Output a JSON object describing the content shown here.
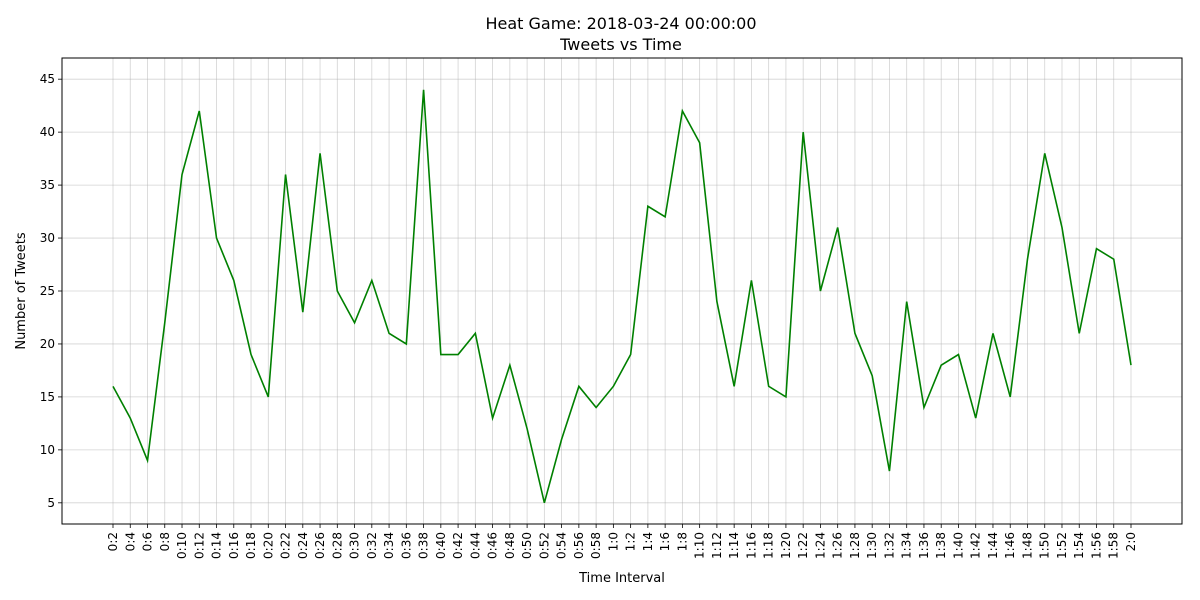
{
  "chart_data": {
    "type": "line",
    "title": "Heat Game: 2018-03-24 00:00:00",
    "subtitle": "Tweets vs Time",
    "xlabel": "Time Interval",
    "ylabel": "Number of Tweets",
    "ylim": [
      3.0,
      47.0
    ],
    "yticks": [
      5,
      10,
      15,
      20,
      25,
      30,
      35,
      40,
      45
    ],
    "grid": true,
    "line_color": "#008000",
    "categories": [
      "0:2",
      "0:4",
      "0:6",
      "0:8",
      "0:10",
      "0:12",
      "0:14",
      "0:16",
      "0:18",
      "0:20",
      "0:22",
      "0:24",
      "0:26",
      "0:28",
      "0:30",
      "0:32",
      "0:34",
      "0:36",
      "0:38",
      "0:40",
      "0:42",
      "0:44",
      "0:46",
      "0:48",
      "0:50",
      "0:52",
      "0:54",
      "0:56",
      "0:58",
      "1:0",
      "1:2",
      "1:4",
      "1:6",
      "1:8",
      "1:10",
      "1:12",
      "1:14",
      "1:16",
      "1:18",
      "1:20",
      "1:22",
      "1:24",
      "1:26",
      "1:28",
      "1:30",
      "1:32",
      "1:34",
      "1:36",
      "1:38",
      "1:40",
      "1:42",
      "1:44",
      "1:46",
      "1:48",
      "1:50",
      "1:52",
      "1:54",
      "1:56",
      "1:58",
      "2:0"
    ],
    "values": [
      16,
      13,
      9,
      22,
      36,
      42,
      30,
      26,
      19,
      15,
      36,
      23,
      38,
      25,
      22,
      26,
      21,
      20,
      44,
      19,
      19,
      21,
      13,
      18,
      12,
      5,
      11,
      16,
      14,
      16,
      19,
      33,
      32,
      42,
      39,
      24,
      16,
      26,
      16,
      15,
      40,
      25,
      31,
      21,
      17,
      8,
      24,
      14,
      18,
      19,
      13,
      21,
      15,
      28,
      38,
      31,
      21,
      29,
      28,
      18
    ]
  }
}
